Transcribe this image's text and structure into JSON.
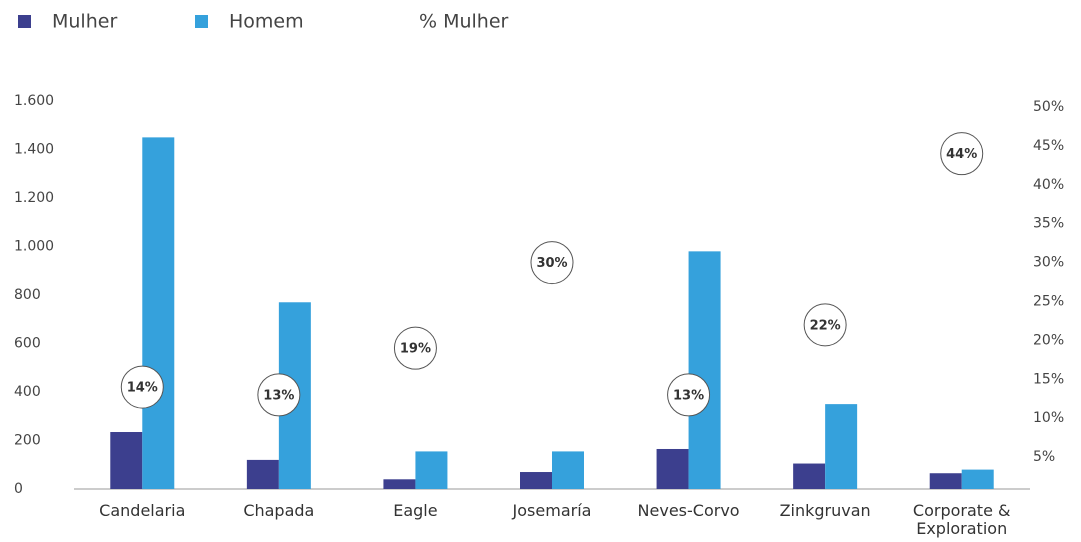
{
  "chart_data": {
    "type": "bar",
    "categories": [
      "Candelaria",
      "Chapada",
      "Eagle",
      "Josemaría",
      "Neves-Corvo",
      "Zinkgruvan",
      "Corporate & Exploration"
    ],
    "series": [
      {
        "name": "Mulher",
        "color": "#3c3f8e",
        "values": [
          235,
          120,
          40,
          70,
          165,
          105,
          65
        ]
      },
      {
        "name": "Homem",
        "color": "#35a1dc",
        "values": [
          1450,
          770,
          155,
          155,
          980,
          350,
          80
        ]
      },
      {
        "name": "% Mulher",
        "type": "scatter",
        "axis": "y2",
        "color": "#ffffff",
        "values": [
          14,
          13,
          19,
          30,
          13,
          22,
          44
        ],
        "value_labels": [
          "14%",
          "13%",
          "19%",
          "30%",
          "13%",
          "22%",
          "44%"
        ]
      }
    ],
    "ylim": [
      0,
      1600
    ],
    "yticks": [
      0,
      200,
      400,
      600,
      800,
      {
        "value": 1000,
        "label": "1.000"
      },
      {
        "value": 1200,
        "label": "1.200"
      },
      {
        "value": 1400,
        "label": "1.400"
      },
      {
        "value": 1600,
        "label": "1.600"
      }
    ],
    "y2lim": [
      0,
      50
    ],
    "y2ticks": [
      {
        "value": 5,
        "label": "5%"
      },
      {
        "value": 10,
        "label": "10%"
      },
      {
        "value": 15,
        "label": "15%"
      },
      {
        "value": 20,
        "label": "20%"
      },
      {
        "value": 25,
        "label": "25%"
      },
      {
        "value": 30,
        "label": "30%"
      },
      {
        "value": 35,
        "label": "35%"
      },
      {
        "value": 40,
        "label": "40%"
      },
      {
        "value": 45,
        "label": "45%"
      },
      {
        "value": 50,
        "label": "50%"
      }
    ],
    "legend": "top-left"
  }
}
